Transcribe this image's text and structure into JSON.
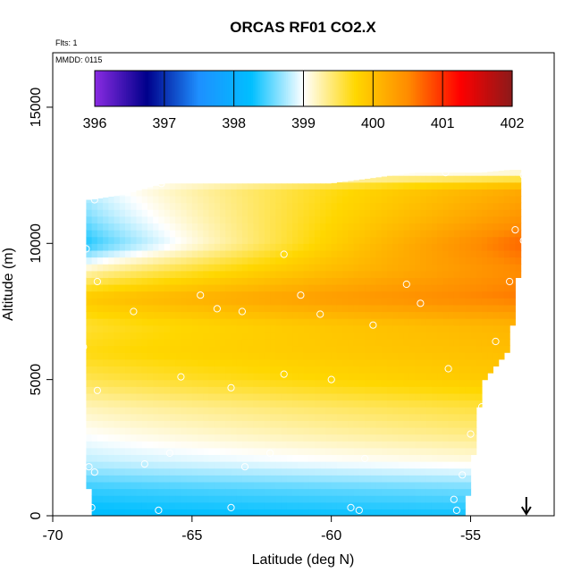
{
  "chart_data": {
    "type": "heatmap",
    "title": "ORCAS RF01 CO2.X",
    "annotations": {
      "flights": "Flts: 1",
      "date": "MMDD: 0115"
    },
    "xlabel": "Latitude (deg N)",
    "ylabel": "Altitude (m)",
    "xlim": [
      -70,
      -52
    ],
    "ylim": [
      0,
      17000
    ],
    "x_ticks": [
      -70,
      -65,
      -60,
      -55
    ],
    "y_ticks": [
      0,
      5000,
      10000,
      15000
    ],
    "colorbar": {
      "ticks": [
        396,
        397,
        398,
        399,
        400,
        401,
        402
      ],
      "range": [
        396,
        402
      ],
      "colors": [
        "#8a2be2",
        "#00008b",
        "#1e90ff",
        "#00bfff",
        "#ffffff",
        "#ffd700",
        "#ff8c00",
        "#ff0000",
        "#8b1a1a"
      ]
    },
    "grid": false,
    "marker_arrow_latitude": -53,
    "domain": [
      {
        "lat": -68.8,
        "alt_min": 1800,
        "alt_max": 11600
      },
      {
        "lat": -68.6,
        "alt_min": 0,
        "alt_max": 11600
      },
      {
        "lat": -67.4,
        "alt_min": 0,
        "alt_max": 11800
      },
      {
        "lat": -66.0,
        "alt_min": 0,
        "alt_max": 12200
      },
      {
        "lat": -62.0,
        "alt_min": 0,
        "alt_max": 12200
      },
      {
        "lat": -60.0,
        "alt_min": 0,
        "alt_max": 12200
      },
      {
        "lat": -57.0,
        "alt_min": 0,
        "alt_max": 12600
      },
      {
        "lat": -55.2,
        "alt_min": 0,
        "alt_max": 12600
      },
      {
        "lat": -54.8,
        "alt_min": 3000,
        "alt_max": 12600
      },
      {
        "lat": -54.6,
        "alt_min": 5000,
        "alt_max": 12600
      },
      {
        "lat": -53.6,
        "alt_min": 6200,
        "alt_max": 12700
      },
      {
        "lat": -53.2,
        "alt_min": 9600,
        "alt_max": 12700
      }
    ],
    "profile": [
      {
        "alt": 0,
        "south": 398.2,
        "north": 398.3
      },
      {
        "alt": 1000,
        "south": 398.4,
        "north": 398.6
      },
      {
        "alt": 2000,
        "south": 398.8,
        "north": 399.1
      },
      {
        "alt": 3000,
        "south": 399.0,
        "north": 399.4
      },
      {
        "alt": 4000,
        "south": 399.2,
        "north": 399.6
      },
      {
        "alt": 5000,
        "south": 399.5,
        "north": 399.9
      },
      {
        "alt": 6000,
        "south": 399.7,
        "north": 400.0
      },
      {
        "alt": 7000,
        "south": 399.6,
        "north": 400.1
      },
      {
        "alt": 8000,
        "south": 399.9,
        "north": 400.6
      },
      {
        "alt": 9000,
        "south": 399.2,
        "north": 400.5
      },
      {
        "alt": 10000,
        "south": 398.3,
        "north": 400.7
      },
      {
        "alt": 11000,
        "south": 398.6,
        "north": 400.4
      },
      {
        "alt": 12000,
        "south": 398.8,
        "north": 400.2
      },
      {
        "alt": 12700,
        "south": 398.7,
        "north": 399.0
      }
    ],
    "samples": [
      {
        "lat": -68.5,
        "alt": 11600
      },
      {
        "lat": -66.1,
        "alt": 12200
      },
      {
        "lat": -61.7,
        "alt": 9600
      },
      {
        "lat": -68.8,
        "alt": 9800
      },
      {
        "lat": -68.4,
        "alt": 8600
      },
      {
        "lat": -64.7,
        "alt": 8100
      },
      {
        "lat": -61.1,
        "alt": 8100
      },
      {
        "lat": -60.4,
        "alt": 7400
      },
      {
        "lat": -63.2,
        "alt": 7500
      },
      {
        "lat": -57.3,
        "alt": 8500
      },
      {
        "lat": -56.8,
        "alt": 7800
      },
      {
        "lat": -58.5,
        "alt": 7000
      },
      {
        "lat": -64.1,
        "alt": 7600
      },
      {
        "lat": -67.1,
        "alt": 7500
      },
      {
        "lat": -68.9,
        "alt": 6200
      },
      {
        "lat": -55.8,
        "alt": 5400
      },
      {
        "lat": -61.7,
        "alt": 5200
      },
      {
        "lat": -65.4,
        "alt": 5100
      },
      {
        "lat": -63.6,
        "alt": 4700
      },
      {
        "lat": -60.0,
        "alt": 5000
      },
      {
        "lat": -68.4,
        "alt": 4600
      },
      {
        "lat": -55.0,
        "alt": 3000
      },
      {
        "lat": -58.8,
        "alt": 2100
      },
      {
        "lat": -62.2,
        "alt": 2300
      },
      {
        "lat": -65.8,
        "alt": 2300
      },
      {
        "lat": -66.7,
        "alt": 1900
      },
      {
        "lat": -68.5,
        "alt": 1600
      },
      {
        "lat": -68.7,
        "alt": 1800
      },
      {
        "lat": -63.1,
        "alt": 1800
      },
      {
        "lat": -55.3,
        "alt": 1500
      },
      {
        "lat": -55.6,
        "alt": 600
      },
      {
        "lat": -59.3,
        "alt": 300
      },
      {
        "lat": -63.6,
        "alt": 300
      },
      {
        "lat": -68.6,
        "alt": 300
      },
      {
        "lat": -66.2,
        "alt": 200
      },
      {
        "lat": -59.0,
        "alt": 200
      },
      {
        "lat": -55.5,
        "alt": 200
      },
      {
        "lat": -53.1,
        "alt": 12500
      },
      {
        "lat": -55.9,
        "alt": 12600
      },
      {
        "lat": -53.4,
        "alt": 10500
      },
      {
        "lat": -53.1,
        "alt": 10100
      },
      {
        "lat": -53.6,
        "alt": 8600
      },
      {
        "lat": -54.1,
        "alt": 6400
      },
      {
        "lat": -54.6,
        "alt": 4000
      }
    ]
  }
}
